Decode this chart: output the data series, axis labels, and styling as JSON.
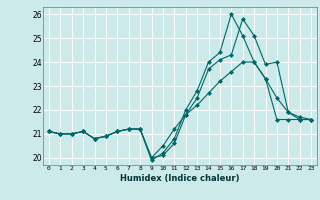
{
  "xlabel": "Humidex (Indice chaleur)",
  "ylabel": "",
  "background_color": "#cceaea",
  "grid_color": "#ffffff",
  "line_color": "#006666",
  "xlim": [
    -0.5,
    23.5
  ],
  "ylim": [
    19.7,
    26.3
  ],
  "yticks": [
    20,
    21,
    22,
    23,
    24,
    25,
    26
  ],
  "xticks": [
    0,
    1,
    2,
    3,
    4,
    5,
    6,
    7,
    8,
    9,
    10,
    11,
    12,
    13,
    14,
    15,
    16,
    17,
    18,
    19,
    20,
    21,
    22,
    23
  ],
  "series1": [
    21.1,
    21.0,
    21.0,
    21.1,
    20.8,
    20.9,
    21.1,
    21.2,
    21.2,
    20.0,
    20.1,
    20.6,
    21.8,
    22.5,
    23.7,
    24.1,
    24.3,
    25.8,
    25.1,
    23.9,
    24.0,
    21.9,
    21.6,
    21.6
  ],
  "series2": [
    21.1,
    21.0,
    21.0,
    21.1,
    20.8,
    20.9,
    21.1,
    21.2,
    21.2,
    19.9,
    20.2,
    20.8,
    22.0,
    22.8,
    24.0,
    24.4,
    26.0,
    25.1,
    24.0,
    23.3,
    22.5,
    21.9,
    21.7,
    21.6
  ],
  "series3": [
    21.1,
    21.0,
    21.0,
    21.1,
    20.8,
    20.9,
    21.1,
    21.2,
    21.2,
    20.0,
    20.5,
    21.2,
    21.8,
    22.2,
    22.7,
    23.2,
    23.6,
    24.0,
    24.0,
    23.3,
    21.6,
    21.6,
    21.6,
    21.6
  ]
}
